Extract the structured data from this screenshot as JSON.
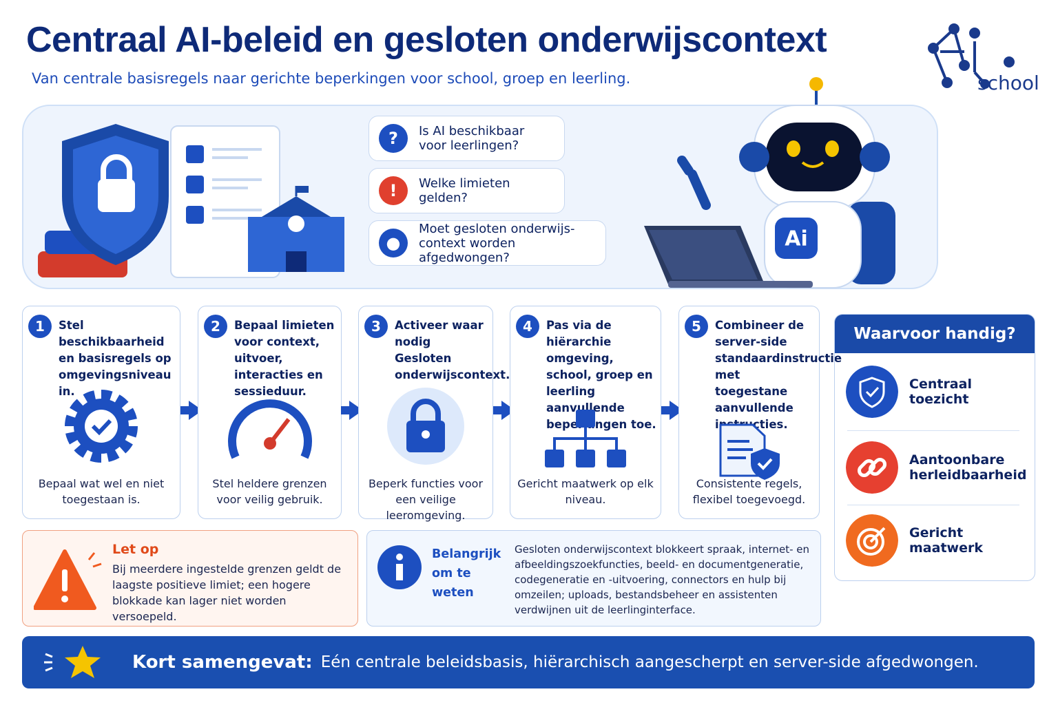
{
  "header": {
    "title": "Centraal AI-beleid en gesloten onderwijscontext",
    "subtitle": "Van centrale basisregels naar gerichte beperkingen voor school, groep en leerling.",
    "logo": {
      "mark": "AI",
      "sub": "school"
    }
  },
  "hero": {
    "questions": [
      "Is AI beschikbaar voor leerlingen?",
      "Welke limieten gelden?",
      "Moet gesloten onderwijs-context worden afgedwongen?"
    ],
    "robot_badge": "Ai"
  },
  "steps": [
    {
      "number": "1",
      "text": "Stel beschikbaarheid en basisregels op omgevingsniveau in.",
      "caption": "Bepaal wat wel en niet toegestaan is."
    },
    {
      "number": "2",
      "text": "Bepaal limieten voor context, uitvoer, interacties en sessieduur.",
      "caption": "Stel heldere grenzen voor veilig gebruik."
    },
    {
      "number": "3",
      "text": "Activeer waar nodig Gesloten onderwijscontext.",
      "caption": "Beperk functies voor een veilige leeromgeving."
    },
    {
      "number": "4",
      "text": "Pas via de hiërarchie omgeving, school, groep en leerling aanvullende beperkingen toe.",
      "caption": "Gericht maatwerk op elk niveau."
    },
    {
      "number": "5",
      "text": "Combineer de server-side standaardinstructie met toegestane aanvullende instructies.",
      "caption": "Consistente regels, flexibel toegevoegd."
    }
  ],
  "sidebar": {
    "title": "Waarvoor handig?",
    "items": [
      "Centraal toezicht",
      "Aantoonbare herleidbaarheid",
      "Gericht maatwerk"
    ]
  },
  "warning": {
    "title": "Let op",
    "text": "Bij meerdere ingestelde grenzen geldt de laagste positieve limiet; een hogere blokkade kan lager niet worden versoepeld."
  },
  "info": {
    "title": "Belangrijk om te weten",
    "text": "Gesloten onderwijscontext blokkeert spraak, internet- en afbeeldingszoekfuncties, beeld- en documentgeneratie, codegeneratie en -uitvoering, connectors en hulp bij omzeilen; uploads, bestandsbeheer en assistenten verdwijnen uit de leerlinginterface."
  },
  "summary": {
    "label": "Kort samengevat:",
    "text": "Eén centrale beleidsbasis, hiërarchisch aangescherpt en server-side afgedwongen."
  }
}
